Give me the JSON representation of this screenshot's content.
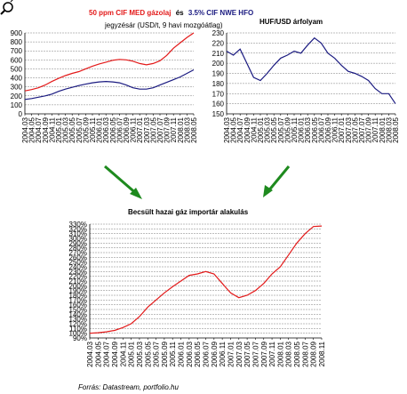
{
  "chart_data": [
    {
      "type": "line",
      "title_parts": {
        "red": "50 ppm CIF MED gázolaj",
        "mid": "és",
        "blue": "3.5% CIF NWE HFO"
      },
      "subtitle": "jegyzésár (USD/t, 9 havi mozgóátlag)",
      "ylim": [
        0,
        900
      ],
      "yticks": [
        "0",
        "100",
        "200",
        "300",
        "400",
        "500",
        "600",
        "700",
        "800",
        "900"
      ],
      "xticks": [
        "2004.03",
        "2004.05",
        "2004.07",
        "2004.09",
        "2004.11",
        "2005.01",
        "2005.03",
        "2005.05",
        "2005.07",
        "2005.09",
        "2005.11",
        "2006.01",
        "2006.03",
        "2006.05",
        "2006.07",
        "2006.09",
        "2006.11",
        "2007.01",
        "2007.03",
        "2007.05",
        "2007.07",
        "2007.09",
        "2007.11",
        "2008.01",
        "2008.03",
        "2008.05"
      ],
      "series": [
        {
          "name": "50 ppm CIF MED gázolaj",
          "color": "#e31a1a",
          "values": [
            255,
            270,
            290,
            320,
            360,
            395,
            425,
            450,
            470,
            500,
            530,
            555,
            575,
            595,
            605,
            600,
            585,
            560,
            545,
            560,
            590,
            650,
            730,
            790,
            850,
            900
          ]
        },
        {
          "name": "3.5% CIF NWE HFO",
          "color": "#1a1a80",
          "values": [
            160,
            170,
            185,
            200,
            220,
            250,
            275,
            295,
            315,
            330,
            345,
            355,
            360,
            355,
            345,
            320,
            290,
            275,
            275,
            290,
            320,
            350,
            380,
            410,
            450,
            490
          ]
        }
      ],
      "grid": true
    },
    {
      "type": "line",
      "title": "HUF/USD árfolyam",
      "ylim": [
        150,
        230
      ],
      "yticks": [
        "150",
        "160",
        "170",
        "180",
        "190",
        "200",
        "210",
        "220",
        "230"
      ],
      "xticks": [
        "2004.03",
        "2004.05",
        "2004.07",
        "2004.09",
        "2004.11",
        "2005.01",
        "2005.03",
        "2005.05",
        "2005.07",
        "2005.09",
        "2005.11",
        "2006.01",
        "2006.03",
        "2006.05",
        "2006.07",
        "2006.09",
        "2006.11",
        "2007.01",
        "2007.03",
        "2007.05",
        "2007.07",
        "2007.09",
        "2007.11",
        "2008.01",
        "2008.03",
        "2008.05"
      ],
      "series": [
        {
          "name": "HUF/USD",
          "color": "#1a1a80",
          "values": [
            212,
            208,
            214,
            200,
            186,
            183,
            190,
            198,
            205,
            208,
            212,
            210,
            218,
            225,
            220,
            210,
            205,
            198,
            192,
            190,
            187,
            183,
            175,
            170,
            170,
            160
          ]
        }
      ],
      "grid": true
    },
    {
      "type": "line",
      "title": "Becsült hazai gáz importár alakulás",
      "ylim": [
        90,
        330
      ],
      "yticks": [
        "90%",
        "100%",
        "110%",
        "120%",
        "130%",
        "140%",
        "150%",
        "160%",
        "170%",
        "180%",
        "190%",
        "200%",
        "210%",
        "220%",
        "230%",
        "240%",
        "250%",
        "260%",
        "270%",
        "280%",
        "290%",
        "300%",
        "310%",
        "320%",
        "330%"
      ],
      "xticks": [
        "2004.03",
        "2004.05",
        "2004.07",
        "2004.09",
        "2004.11",
        "2005.01",
        "2005.03",
        "2005.05",
        "2005.07",
        "2005.09",
        "2005.11",
        "2006.01",
        "2006.03",
        "2006.05",
        "2006.07",
        "2006.09",
        "2006.11",
        "2007.01",
        "2007.03",
        "2007.05",
        "2007.07",
        "2007.09",
        "2007.11",
        "2008.01",
        "2008.03",
        "2008.05",
        "2008.07",
        "2008.09",
        "2008.11"
      ],
      "series": [
        {
          "name": "Becsült hazai gáz importár",
          "color": "#e31a1a",
          "values": [
            100,
            101,
            103,
            106,
            112,
            120,
            135,
            155,
            170,
            185,
            198,
            210,
            222,
            225,
            230,
            225,
            205,
            185,
            175,
            180,
            190,
            205,
            225,
            240,
            265,
            290,
            310,
            325,
            326
          ]
        }
      ],
      "grid": true
    }
  ],
  "source": "Forrás: Datastream, portfolio.hu",
  "colors": {
    "arrow": "#1e8a1e",
    "grid": "#7f7f7f",
    "axis": "#000000"
  }
}
